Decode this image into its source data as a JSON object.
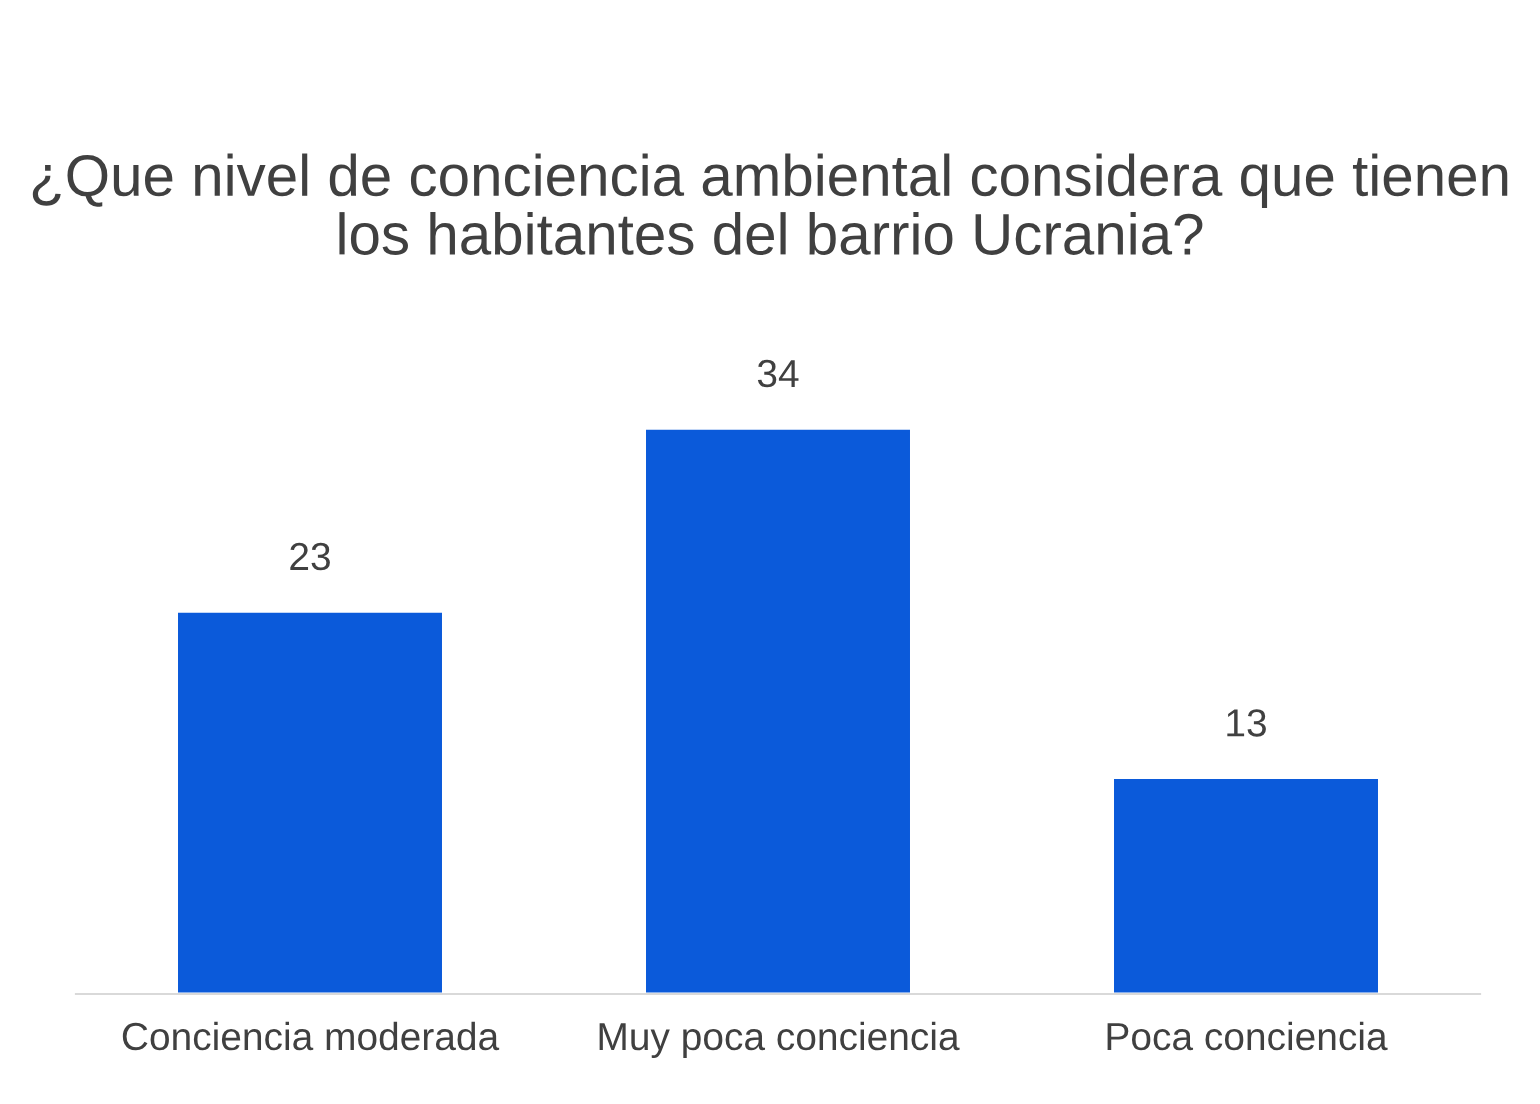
{
  "chart_data": {
    "type": "bar",
    "title": "¿Que nivel de conciencia ambiental considera que tienen los habitantes del barrio Ucrania?",
    "categories": [
      "Conciencia moderada",
      "Muy poca conciencia",
      "Poca conciencia"
    ],
    "values": [
      23,
      34,
      13
    ],
    "color": "#0b5ada",
    "data_labels": true,
    "grid": false,
    "legend": false
  }
}
